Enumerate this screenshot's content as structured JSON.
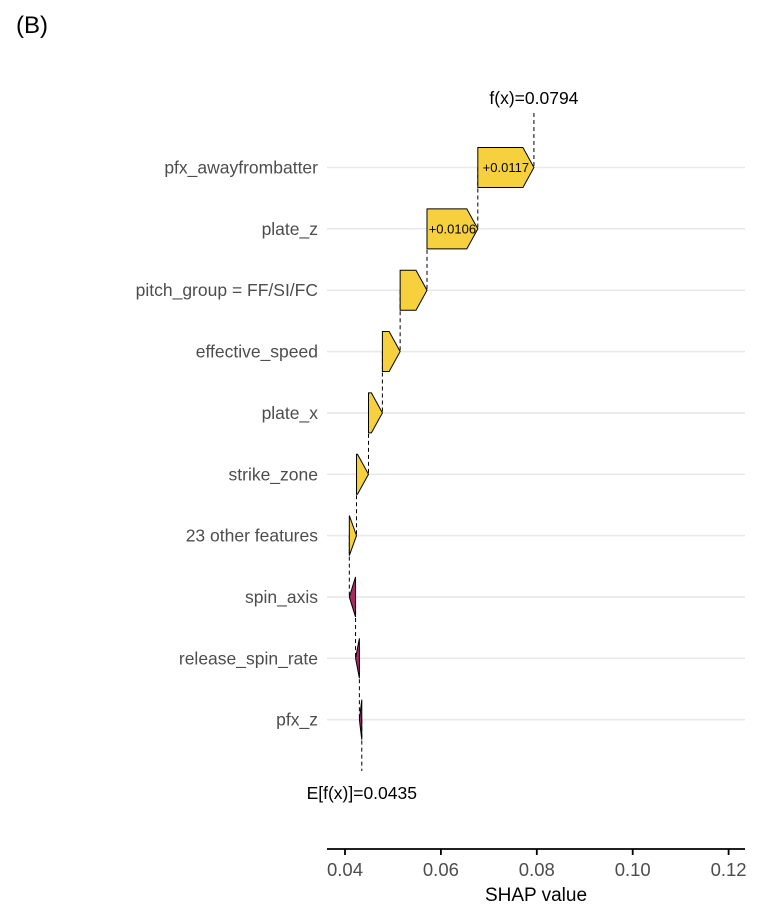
{
  "panel_label": "(B)",
  "chart_data": {
    "type": "waterfall",
    "title": "",
    "xlabel": "SHAP value",
    "x_range": [
      0.0362,
      0.1235
    ],
    "x_ticks": [
      {
        "label": "0.04",
        "value": 0.04
      },
      {
        "label": "0.06",
        "value": 0.06
      },
      {
        "label": "0.08",
        "value": 0.08
      },
      {
        "label": "0.10",
        "value": 0.1
      },
      {
        "label": "0.12",
        "value": 0.12
      }
    ],
    "grid": "horizontal",
    "legend_position": "none",
    "final": {
      "label": "f(x)=0.0794",
      "value": 0.0794
    },
    "baseline": {
      "label": "E[f(x)]=0.0435",
      "value": 0.0435
    },
    "features": [
      {
        "name": "pfx_awayfrombatter",
        "contribution": 0.0117,
        "value_label": "+0.0117"
      },
      {
        "name": "plate_z",
        "contribution": 0.0106,
        "value_label": "+0.0106"
      },
      {
        "name": "pitch_group = FF/SI/FC",
        "contribution": 0.0056,
        "value_label": ""
      },
      {
        "name": "effective_speed",
        "contribution": 0.0037,
        "value_label": ""
      },
      {
        "name": "plate_x",
        "contribution": 0.0029,
        "value_label": ""
      },
      {
        "name": "strike_zone",
        "contribution": 0.0025,
        "value_label": ""
      },
      {
        "name": "23 other features",
        "contribution": 0.0015,
        "value_label": ""
      },
      {
        "name": "spin_axis",
        "contribution": -0.0013,
        "value_label": ""
      },
      {
        "name": "release_spin_rate",
        "contribution": -0.0008,
        "value_label": ""
      },
      {
        "name": "pfx_z",
        "contribution": -0.0005,
        "value_label": ""
      }
    ],
    "colors": {
      "positive_fill": "#f7d13d",
      "negative_fill": "#a52c60",
      "arrow_border": "#000000",
      "gridline": "#e9e9e9",
      "axis_text": "#4d4d4d",
      "annotation_text": "#000000",
      "axis_line": "#000000",
      "connector": "#000000"
    }
  }
}
